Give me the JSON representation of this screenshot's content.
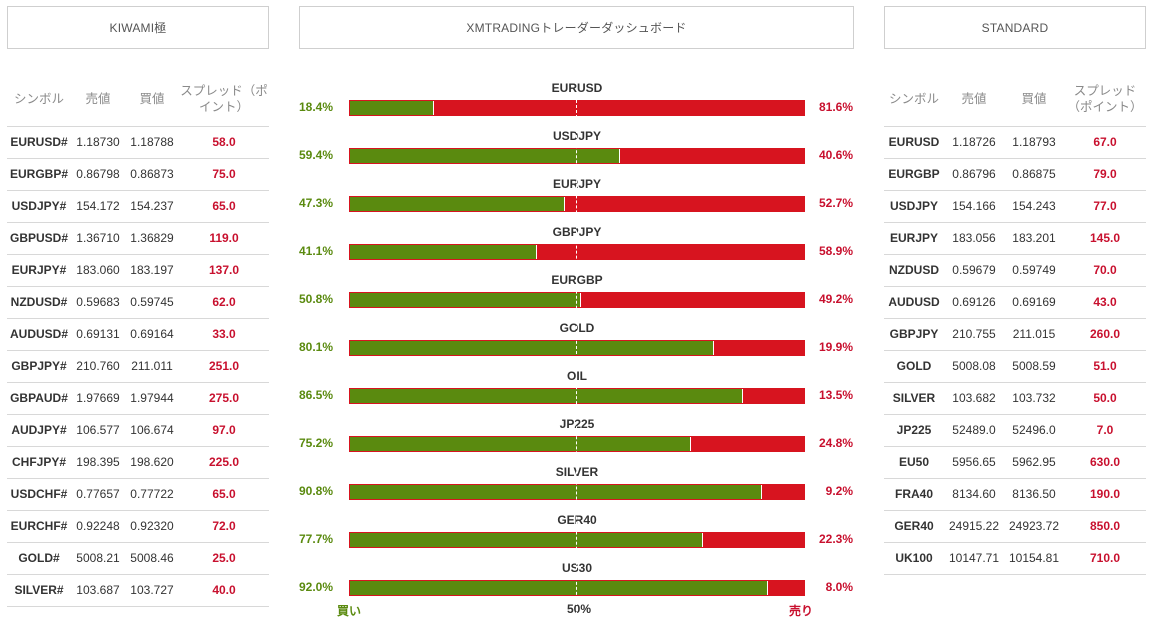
{
  "headers": {
    "left": "KIWAMI極",
    "center": "XMTRADINGトレーダーダッシュボード",
    "right": "STANDARD"
  },
  "left_table": {
    "columns": [
      "シンボル",
      "売値",
      "買値",
      "スプレッド（ポイント）"
    ],
    "rows": [
      [
        "EURUSD#",
        "1.18730",
        "1.18788",
        "58.0"
      ],
      [
        "EURGBP#",
        "0.86798",
        "0.86873",
        "75.0"
      ],
      [
        "USDJPY#",
        "154.172",
        "154.237",
        "65.0"
      ],
      [
        "GBPUSD#",
        "1.36710",
        "1.36829",
        "119.0"
      ],
      [
        "EURJPY#",
        "183.060",
        "183.197",
        "137.0"
      ],
      [
        "NZDUSD#",
        "0.59683",
        "0.59745",
        "62.0"
      ],
      [
        "AUDUSD#",
        "0.69131",
        "0.69164",
        "33.0"
      ],
      [
        "GBPJPY#",
        "210.760",
        "211.011",
        "251.0"
      ],
      [
        "GBPAUD#",
        "1.97669",
        "1.97944",
        "275.0"
      ],
      [
        "AUDJPY#",
        "106.577",
        "106.674",
        "97.0"
      ],
      [
        "CHFJPY#",
        "198.395",
        "198.620",
        "225.0"
      ],
      [
        "USDCHF#",
        "0.77657",
        "0.77722",
        "65.0"
      ],
      [
        "EURCHF#",
        "0.92248",
        "0.92320",
        "72.0"
      ],
      [
        "GOLD#",
        "5008.21",
        "5008.46",
        "25.0"
      ],
      [
        "SILVER#",
        "103.687",
        "103.727",
        "40.0"
      ]
    ]
  },
  "right_table": {
    "columns": [
      "シンボル",
      "売値",
      "買値",
      "スプレッド（ポイント）"
    ],
    "rows": [
      [
        "EURUSD",
        "1.18726",
        "1.18793",
        "67.0"
      ],
      [
        "EURGBP",
        "0.86796",
        "0.86875",
        "79.0"
      ],
      [
        "USDJPY",
        "154.166",
        "154.243",
        "77.0"
      ],
      [
        "EURJPY",
        "183.056",
        "183.201",
        "145.0"
      ],
      [
        "NZDUSD",
        "0.59679",
        "0.59749",
        "70.0"
      ],
      [
        "AUDUSD",
        "0.69126",
        "0.69169",
        "43.0"
      ],
      [
        "GBPJPY",
        "210.755",
        "211.015",
        "260.0"
      ],
      [
        "GOLD",
        "5008.08",
        "5008.59",
        "51.0"
      ],
      [
        "SILVER",
        "103.682",
        "103.732",
        "50.0"
      ],
      [
        "JP225",
        "52489.0",
        "52496.0",
        "7.0"
      ],
      [
        "EU50",
        "5956.65",
        "5962.95",
        "630.0"
      ],
      [
        "FRA40",
        "8134.60",
        "8136.50",
        "190.0"
      ],
      [
        "GER40",
        "24915.22",
        "24923.72",
        "850.0"
      ],
      [
        "UK100",
        "10147.71",
        "10154.81",
        "710.0"
      ]
    ]
  },
  "sentiment": [
    {
      "symbol": "EURUSD",
      "buy": 18.4,
      "sell": 81.6,
      "buy_label": "18.4%",
      "sell_label": "81.6%"
    },
    {
      "symbol": "USDJPY",
      "buy": 59.4,
      "sell": 40.6,
      "buy_label": "59.4%",
      "sell_label": "40.6%"
    },
    {
      "symbol": "EURJPY",
      "buy": 47.3,
      "sell": 52.7,
      "buy_label": "47.3%",
      "sell_label": "52.7%"
    },
    {
      "symbol": "GBPJPY",
      "buy": 41.1,
      "sell": 58.9,
      "buy_label": "41.1%",
      "sell_label": "58.9%"
    },
    {
      "symbol": "EURGBP",
      "buy": 50.8,
      "sell": 49.2,
      "buy_label": "50.8%",
      "sell_label": "49.2%"
    },
    {
      "symbol": "GOLD",
      "buy": 80.1,
      "sell": 19.9,
      "buy_label": "80.1%",
      "sell_label": "19.9%"
    },
    {
      "symbol": "OIL",
      "buy": 86.5,
      "sell": 13.5,
      "buy_label": "86.5%",
      "sell_label": "13.5%"
    },
    {
      "symbol": "JP225",
      "buy": 75.2,
      "sell": 24.8,
      "buy_label": "75.2%",
      "sell_label": "24.8%"
    },
    {
      "symbol": "SILVER",
      "buy": 90.8,
      "sell": 9.2,
      "buy_label": "90.8%",
      "sell_label": "9.2%"
    },
    {
      "symbol": "GER40",
      "buy": 77.7,
      "sell": 22.3,
      "buy_label": "77.7%",
      "sell_label": "22.3%"
    },
    {
      "symbol": "US30",
      "buy": 92.0,
      "sell": 8.0,
      "buy_label": "92.0%",
      "sell_label": "8.0%"
    }
  ],
  "footer": {
    "buy": "買い",
    "mid": "50%",
    "sell": "売り"
  },
  "colors": {
    "buy": "#5a8a0f",
    "sell": "#d7141f",
    "spread": "#c8102e"
  }
}
